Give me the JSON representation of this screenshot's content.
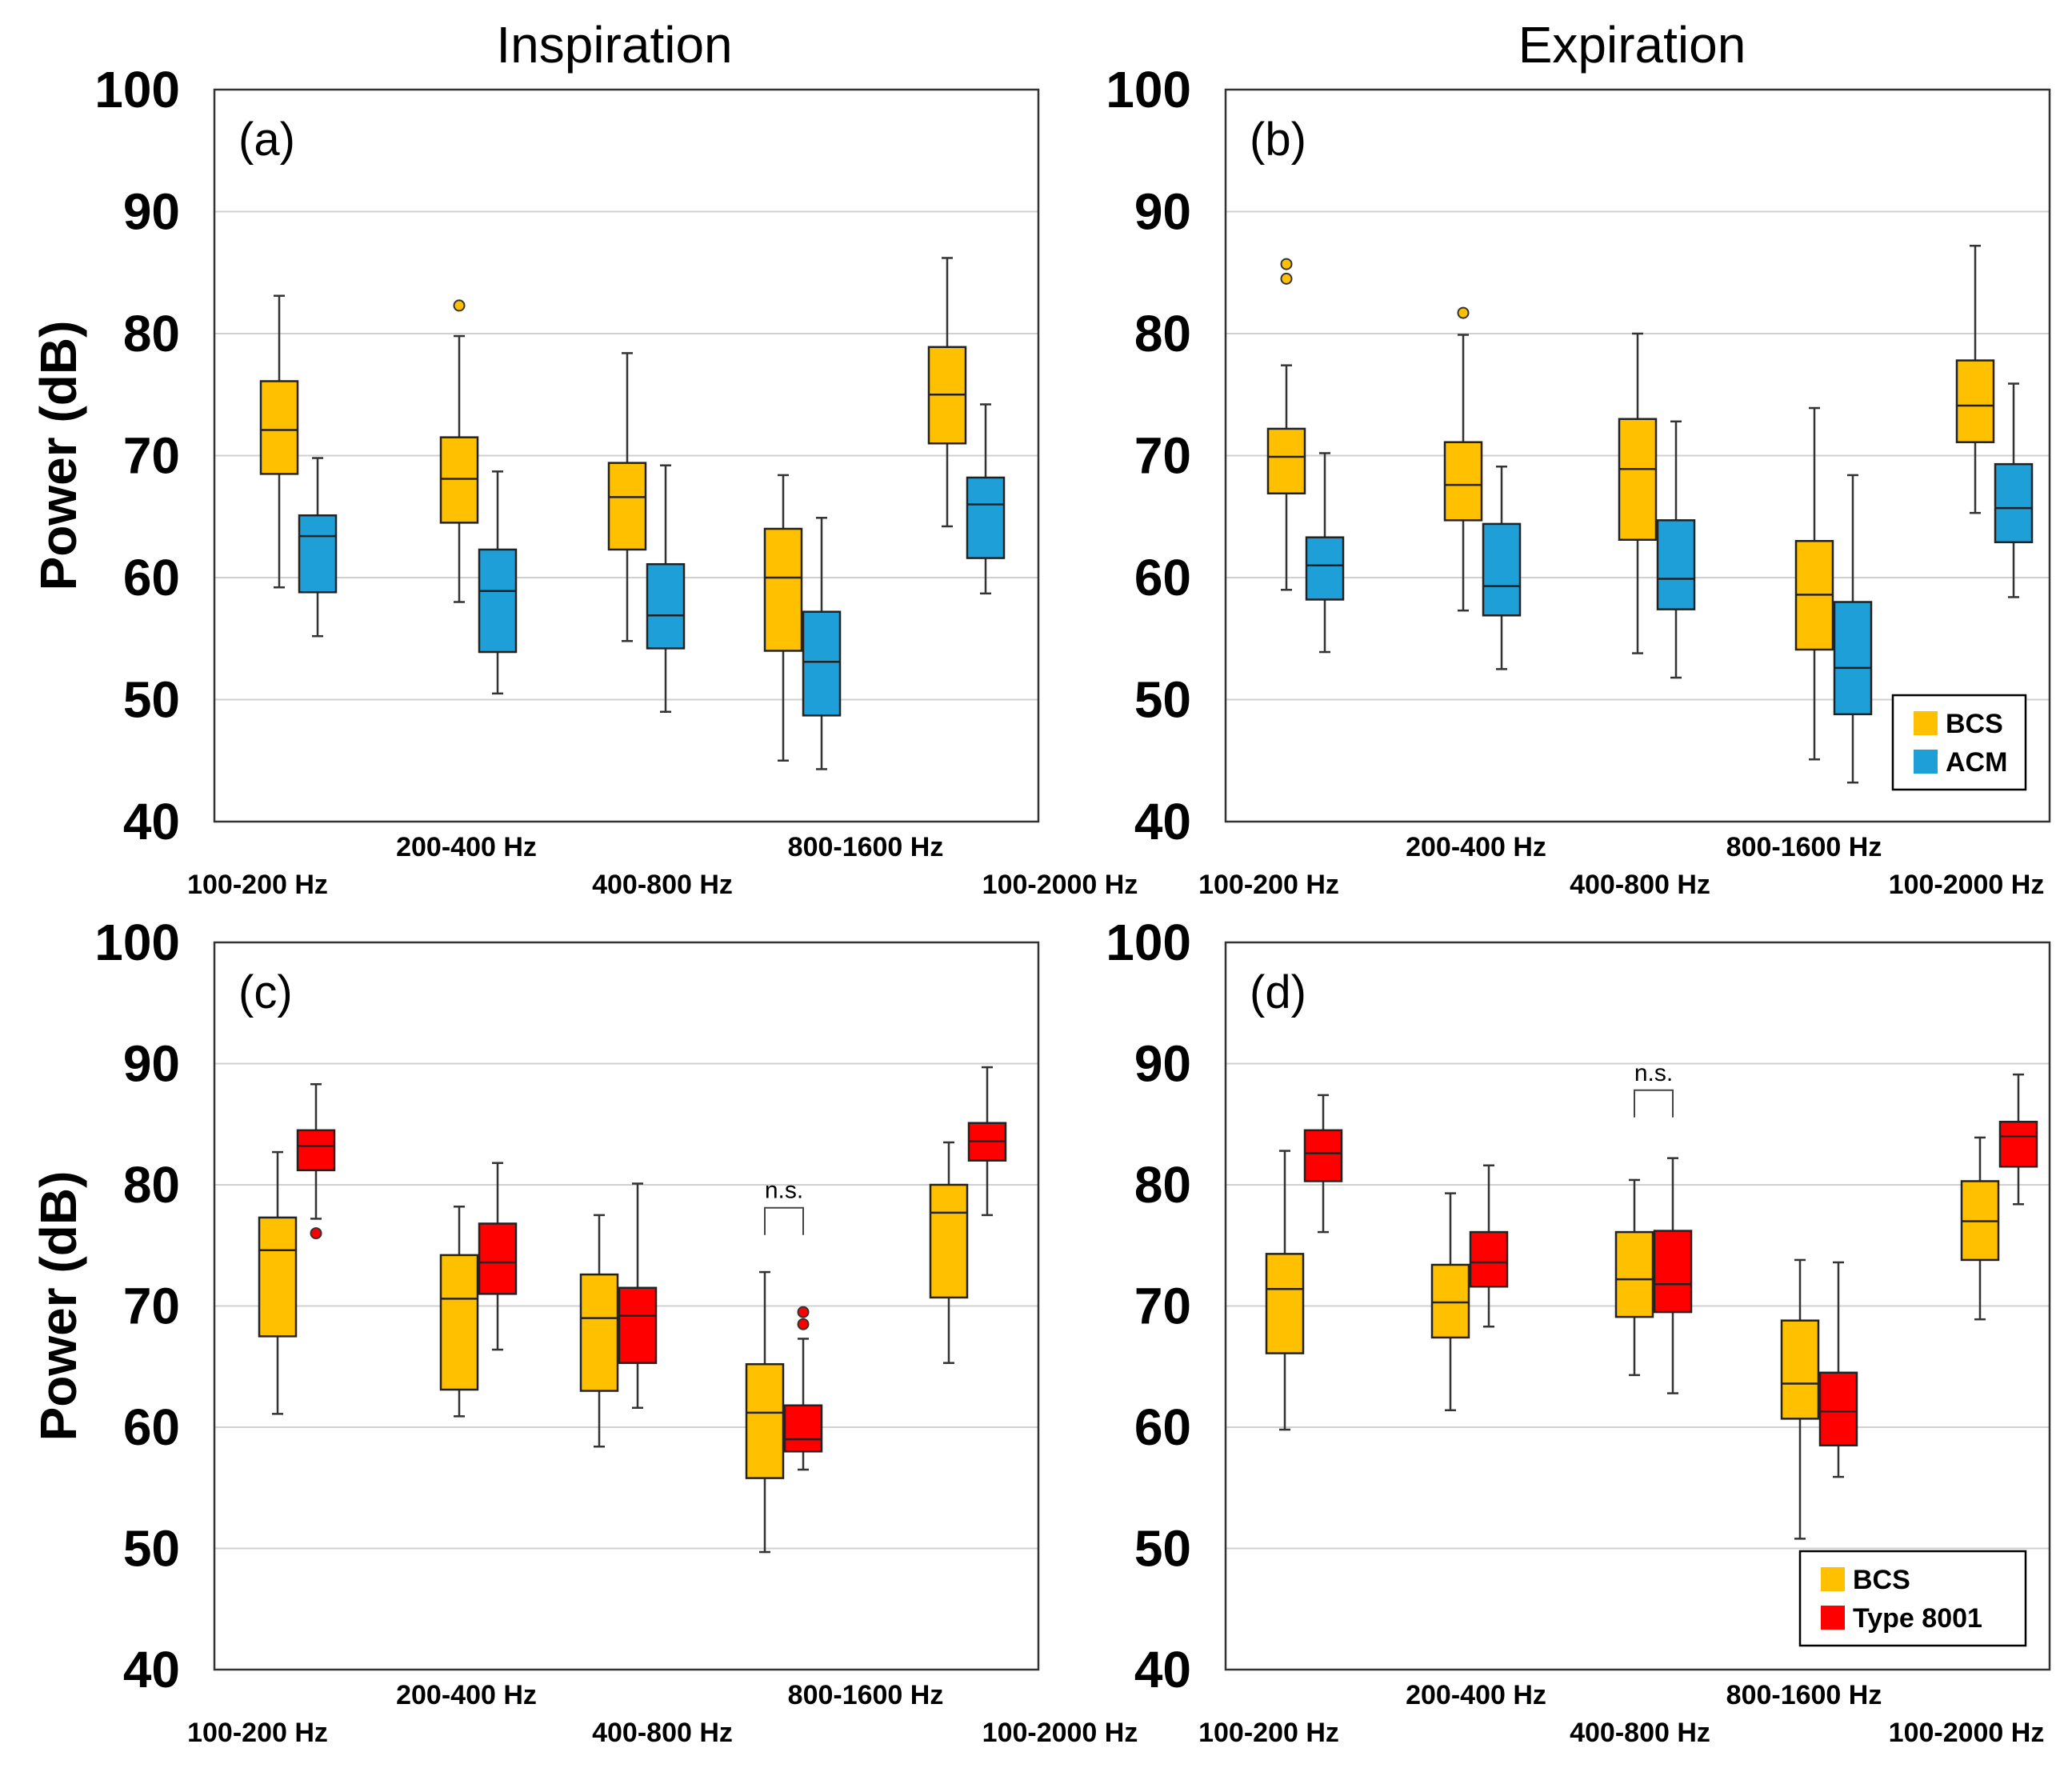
{
  "colors": {
    "BCS": "#FFC000",
    "ACM": "#1F9FD8",
    "Type 8001": "#FF0000",
    "grid": "#d0d0d0"
  },
  "column_titles": [
    "Inspiration",
    "Expiration"
  ],
  "chart_data": [
    {
      "type": "box",
      "panel": "(a)",
      "column_title": "Inspiration",
      "ylabel": "Power (dB)",
      "ylim": [
        40,
        100
      ],
      "yticks": [
        40,
        50,
        60,
        70,
        80,
        90,
        100
      ],
      "categories": [
        "100-200 Hz",
        "200-400 Hz",
        "400-800 Hz",
        "800-1600 Hz",
        "100-2000 Hz"
      ],
      "legend": null,
      "series": [
        {
          "name": "BCS",
          "color": "#FFC000",
          "boxes": [
            {
              "whisker_low": 59.2,
              "q1": 68.5,
              "median": 72.1,
              "q3": 76.1,
              "whisker_high": 83.1,
              "outliers": []
            },
            {
              "whisker_low": 58.0,
              "q1": 64.5,
              "median": 68.1,
              "q3": 71.5,
              "whisker_high": 79.8,
              "outliers": [
                82.3
              ]
            },
            {
              "whisker_low": 54.8,
              "q1": 62.3,
              "median": 66.6,
              "q3": 69.4,
              "whisker_high": 78.4,
              "outliers": []
            },
            {
              "whisker_low": 45.0,
              "q1": 54.0,
              "median": 60.0,
              "q3": 64.0,
              "whisker_high": 68.4,
              "outliers": []
            },
            {
              "whisker_low": 64.2,
              "q1": 71.0,
              "median": 75.0,
              "q3": 78.9,
              "whisker_high": 86.2,
              "outliers": []
            }
          ]
        },
        {
          "name": "ACM",
          "color": "#1F9FD8",
          "boxes": [
            {
              "whisker_low": 55.2,
              "q1": 58.8,
              "median": 63.4,
              "q3": 65.1,
              "whisker_high": 69.8,
              "outliers": []
            },
            {
              "whisker_low": 50.5,
              "q1": 53.9,
              "median": 58.9,
              "q3": 62.3,
              "whisker_high": 68.7,
              "outliers": []
            },
            {
              "whisker_low": 49.0,
              "q1": 54.2,
              "median": 56.9,
              "q3": 61.1,
              "whisker_high": 69.2,
              "outliers": []
            },
            {
              "whisker_low": 44.3,
              "q1": 48.7,
              "median": 53.1,
              "q3": 57.2,
              "whisker_high": 64.9,
              "outliers": []
            },
            {
              "whisker_low": 58.7,
              "q1": 61.6,
              "median": 66.0,
              "q3": 68.2,
              "whisker_high": 74.2,
              "outliers": []
            }
          ]
        }
      ],
      "annotations": []
    },
    {
      "type": "box",
      "panel": "(b)",
      "column_title": "Expiration",
      "ylabel": "",
      "ylim": [
        40,
        100
      ],
      "yticks": [
        40,
        50,
        60,
        70,
        80,
        90,
        100
      ],
      "categories": [
        "100-200 Hz",
        "200-400 Hz",
        "400-800 Hz",
        "800-1600 Hz",
        "100-2000 Hz"
      ],
      "legend": {
        "position": "bottom-right",
        "entries": [
          "BCS",
          "ACM"
        ]
      },
      "series": [
        {
          "name": "BCS",
          "color": "#FFC000",
          "boxes": [
            {
              "whisker_low": 59.0,
              "q1": 66.9,
              "median": 69.9,
              "q3": 72.2,
              "whisker_high": 77.4,
              "outliers": [
                84.5,
                85.7
              ]
            },
            {
              "whisker_low": 57.3,
              "q1": 64.7,
              "median": 67.6,
              "q3": 71.1,
              "whisker_high": 79.9,
              "outliers": [
                81.7
              ]
            },
            {
              "whisker_low": 53.8,
              "q1": 63.1,
              "median": 68.9,
              "q3": 73.0,
              "whisker_high": 80.0,
              "outliers": []
            },
            {
              "whisker_low": 45.1,
              "q1": 54.1,
              "median": 58.6,
              "q3": 63.0,
              "whisker_high": 73.9,
              "outliers": []
            },
            {
              "whisker_low": 65.3,
              "q1": 71.1,
              "median": 74.1,
              "q3": 77.8,
              "whisker_high": 87.2,
              "outliers": []
            }
          ]
        },
        {
          "name": "ACM",
          "color": "#1F9FD8",
          "boxes": [
            {
              "whisker_low": 53.9,
              "q1": 58.2,
              "median": 61.0,
              "q3": 63.3,
              "whisker_high": 70.2,
              "outliers": []
            },
            {
              "whisker_low": 52.5,
              "q1": 56.9,
              "median": 59.3,
              "q3": 64.4,
              "whisker_high": 69.1,
              "outliers": []
            },
            {
              "whisker_low": 51.8,
              "q1": 57.4,
              "median": 59.9,
              "q3": 64.7,
              "whisker_high": 72.8,
              "outliers": []
            },
            {
              "whisker_low": 43.2,
              "q1": 48.8,
              "median": 52.6,
              "q3": 58.0,
              "whisker_high": 68.4,
              "outliers": []
            },
            {
              "whisker_low": 58.4,
              "q1": 62.9,
              "median": 65.7,
              "q3": 69.3,
              "whisker_high": 75.9,
              "outliers": []
            }
          ]
        }
      ],
      "annotations": []
    },
    {
      "type": "box",
      "panel": "(c)",
      "column_title": "",
      "ylabel": "Power (dB)",
      "ylim": [
        40,
        100
      ],
      "yticks": [
        40,
        50,
        60,
        70,
        80,
        90,
        100
      ],
      "categories": [
        "100-200 Hz",
        "200-400 Hz",
        "400-800 Hz",
        "800-1600 Hz",
        "100-2000 Hz"
      ],
      "legend": null,
      "series": [
        {
          "name": "BCS",
          "color": "#FFC000",
          "boxes": [
            {
              "whisker_low": 61.1,
              "q1": 67.5,
              "median": 74.6,
              "q3": 77.3,
              "whisker_high": 82.7,
              "outliers": []
            },
            {
              "whisker_low": 60.9,
              "q1": 63.1,
              "median": 70.6,
              "q3": 74.2,
              "whisker_high": 78.2,
              "outliers": []
            },
            {
              "whisker_low": 58.4,
              "q1": 63.0,
              "median": 69.0,
              "q3": 72.6,
              "whisker_high": 77.5,
              "outliers": []
            },
            {
              "whisker_low": 49.7,
              "q1": 55.8,
              "median": 61.2,
              "q3": 65.2,
              "whisker_high": 72.8,
              "outliers": []
            },
            {
              "whisker_low": 65.3,
              "q1": 70.7,
              "median": 77.7,
              "q3": 80.0,
              "whisker_high": 83.5,
              "outliers": []
            }
          ]
        },
        {
          "name": "Type 8001",
          "color": "#FF0000",
          "boxes": [
            {
              "whisker_low": 77.2,
              "q1": 81.2,
              "median": 83.2,
              "q3": 84.5,
              "whisker_high": 88.3,
              "outliers": [
                76.0
              ]
            },
            {
              "whisker_low": 66.4,
              "q1": 71.0,
              "median": 73.6,
              "q3": 76.8,
              "whisker_high": 81.8,
              "outliers": []
            },
            {
              "whisker_low": 61.6,
              "q1": 65.3,
              "median": 69.2,
              "q3": 71.5,
              "whisker_high": 80.1,
              "outliers": []
            },
            {
              "whisker_low": 56.5,
              "q1": 58.0,
              "median": 59.0,
              "q3": 61.8,
              "whisker_high": 67.3,
              "outliers": [
                68.5,
                69.5
              ]
            },
            {
              "whisker_low": 77.5,
              "q1": 82.0,
              "median": 83.6,
              "q3": 85.1,
              "whisker_high": 89.7,
              "outliers": []
            }
          ]
        }
      ],
      "annotations": [
        {
          "text": "n.s.",
          "category": "800-1600 Hz",
          "y": 78.5
        }
      ]
    },
    {
      "type": "box",
      "panel": "(d)",
      "column_title": "",
      "ylabel": "",
      "ylim": [
        40,
        100
      ],
      "yticks": [
        40,
        50,
        60,
        70,
        80,
        90,
        100
      ],
      "categories": [
        "100-200 Hz",
        "200-400 Hz",
        "400-800 Hz",
        "800-1600 Hz",
        "100-2000 Hz"
      ],
      "legend": {
        "position": "bottom-right",
        "entries": [
          "BCS",
          "Type 8001"
        ]
      },
      "series": [
        {
          "name": "BCS",
          "color": "#FFC000",
          "boxes": [
            {
              "whisker_low": 59.8,
              "q1": 66.1,
              "median": 71.4,
              "q3": 74.3,
              "whisker_high": 82.8,
              "outliers": []
            },
            {
              "whisker_low": 61.4,
              "q1": 67.4,
              "median": 70.3,
              "q3": 73.4,
              "whisker_high": 79.3,
              "outliers": []
            },
            {
              "whisker_low": 64.3,
              "q1": 69.1,
              "median": 72.2,
              "q3": 76.1,
              "whisker_high": 80.4,
              "outliers": []
            },
            {
              "whisker_low": 50.8,
              "q1": 60.7,
              "median": 63.6,
              "q3": 68.8,
              "whisker_high": 73.8,
              "outliers": []
            },
            {
              "whisker_low": 68.9,
              "q1": 73.8,
              "median": 77.0,
              "q3": 80.3,
              "whisker_high": 83.9,
              "outliers": []
            }
          ]
        },
        {
          "name": "Type 8001",
          "color": "#FF0000",
          "boxes": [
            {
              "whisker_low": 76.1,
              "q1": 80.3,
              "median": 82.6,
              "q3": 84.5,
              "whisker_high": 87.4,
              "outliers": []
            },
            {
              "whisker_low": 68.3,
              "q1": 71.6,
              "median": 73.6,
              "q3": 76.1,
              "whisker_high": 81.6,
              "outliers": []
            },
            {
              "whisker_low": 62.8,
              "q1": 69.5,
              "median": 71.8,
              "q3": 76.2,
              "whisker_high": 82.2,
              "outliers": []
            },
            {
              "whisker_low": 55.9,
              "q1": 58.5,
              "median": 61.3,
              "q3": 64.5,
              "whisker_high": 73.6,
              "outliers": []
            },
            {
              "whisker_low": 78.4,
              "q1": 81.5,
              "median": 84.0,
              "q3": 85.2,
              "whisker_high": 89.1,
              "outliers": []
            }
          ]
        }
      ],
      "annotations": [
        {
          "text": "n.s.",
          "category": "400-800 Hz",
          "y": 88.2
        }
      ]
    }
  ]
}
